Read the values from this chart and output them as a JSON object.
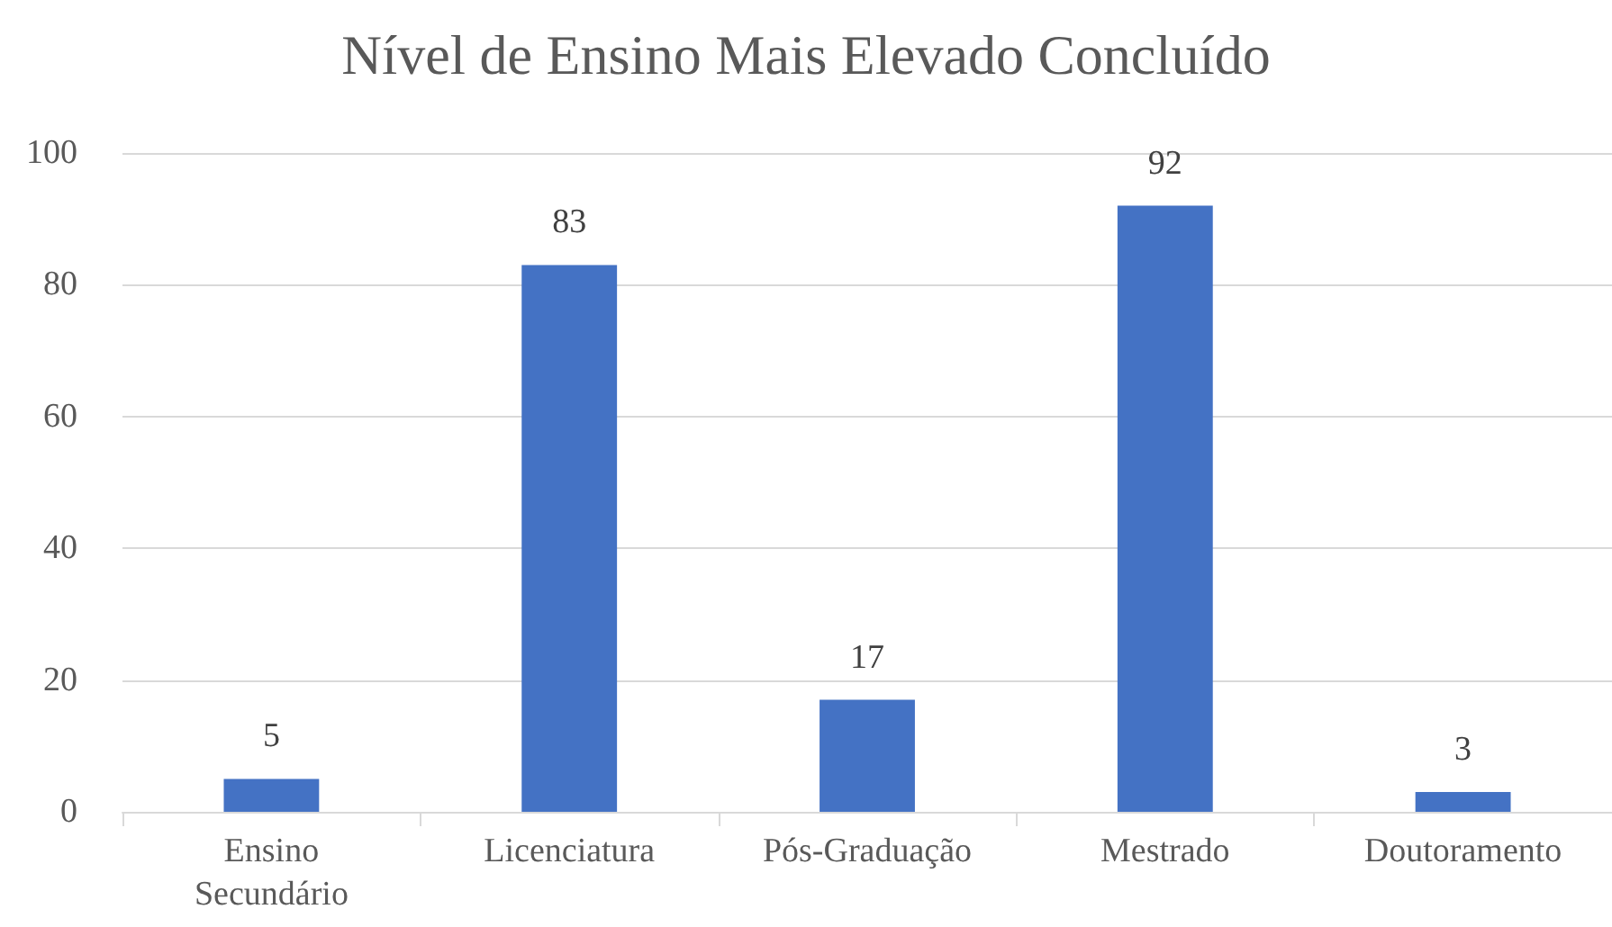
{
  "chart_data": {
    "type": "bar",
    "title": "Nível de Ensino Mais Elevado Concluído",
    "categories": [
      "Ensino Secundário",
      "Licenciatura",
      "Pós-Graduação",
      "Mestrado",
      "Doutoramento"
    ],
    "values": [
      5,
      83,
      17,
      92,
      3
    ],
    "color": "#4472c4",
    "ylim": [
      0,
      100
    ],
    "yticks": [
      0,
      20,
      40,
      60,
      80,
      100
    ],
    "grid": "y",
    "data_labels": true
  }
}
